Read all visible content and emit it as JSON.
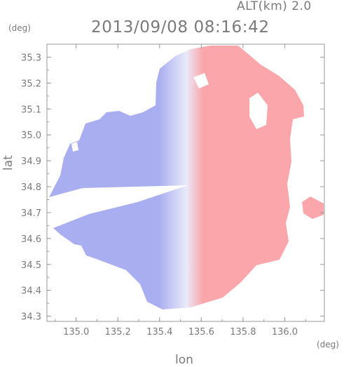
{
  "header": {
    "altitude_label": "ALT(km) 2.0",
    "timestamp": "2013/09/08 08:16:42"
  },
  "chart_data": {
    "type": "heatmap",
    "title": "2013/09/08 08:16:42",
    "subtitle": "ALT(km) 2.0",
    "xlabel": "lon",
    "ylabel": "lat",
    "x_unit": "(deg)",
    "y_unit": "(deg)",
    "xlim": [
      134.86,
      136.19
    ],
    "ylim": [
      34.28,
      35.35
    ],
    "x_ticks": [
      135.0,
      135.2,
      135.4,
      135.6,
      135.8,
      136.0
    ],
    "x_tick_labels": [
      "135.0",
      "135.2",
      "135.4",
      "135.6",
      "135.8",
      "136.0"
    ],
    "y_ticks": [
      34.3,
      34.4,
      34.5,
      34.6,
      34.7,
      34.8,
      34.9,
      35.0,
      35.1,
      35.2,
      35.3
    ],
    "y_tick_labels": [
      "34.3",
      "34.4",
      "34.5",
      "34.6",
      "34.7",
      "34.8",
      "34.9",
      "35.0",
      "35.1",
      "35.2",
      "35.3"
    ],
    "radar_center": {
      "lon": 135.53,
      "lat": 34.82
    },
    "colors": {
      "approaching": "#a9aef0",
      "receding": "#fba6aa",
      "neutral": "#f6f6fc"
    },
    "grid": false,
    "legend": "none"
  }
}
